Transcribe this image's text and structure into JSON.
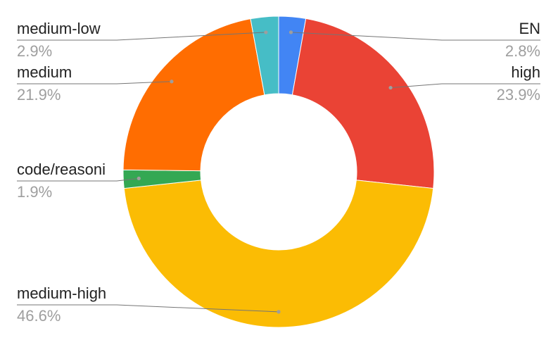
{
  "chart_data": {
    "type": "pie",
    "donut": true,
    "title": "",
    "slices": [
      {
        "label": "EN",
        "value": 2.8,
        "percent_label": "2.8%",
        "color": "#4285f4"
      },
      {
        "label": "high",
        "value": 23.9,
        "percent_label": "23.9%",
        "color": "#ea4335"
      },
      {
        "label": "medium-high",
        "value": 46.6,
        "percent_label": "46.6%",
        "color": "#fbbc04"
      },
      {
        "label": "code/reasoni",
        "value": 1.9,
        "percent_label": "1.9%",
        "color": "#34a853"
      },
      {
        "label": "medium",
        "value": 21.9,
        "percent_label": "21.9%",
        "color": "#ff6d01"
      },
      {
        "label": "medium-low",
        "value": 2.9,
        "percent_label": "2.9%",
        "color": "#46bdc6"
      }
    ],
    "legend": "outside-callouts"
  }
}
